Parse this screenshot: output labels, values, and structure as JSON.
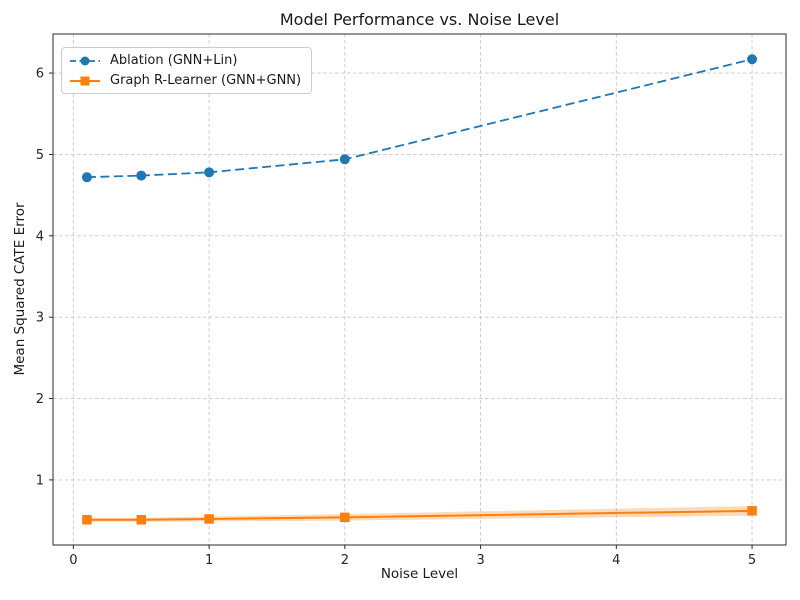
{
  "chart_data": {
    "type": "line",
    "title": "Model Performance vs. Noise Level",
    "xlabel": "Noise Level",
    "ylabel": "Mean Squared CATE Error",
    "x": [
      0.1,
      0.5,
      1.0,
      2.0,
      5.0
    ],
    "series": [
      {
        "name": "Ablation (GNN+Lin)",
        "values": [
          4.72,
          4.74,
          4.78,
          4.94,
          6.17
        ],
        "color": "#1f77b4",
        "linestyle": "dashed",
        "marker": "circle"
      },
      {
        "name": "Graph R-Learner (GNN+GNN)",
        "values": [
          0.51,
          0.51,
          0.52,
          0.54,
          0.62
        ],
        "color": "#ff7f0e",
        "linestyle": "solid",
        "marker": "square",
        "band_halfwidth": [
          0.025,
          0.025,
          0.03,
          0.04,
          0.06
        ]
      }
    ],
    "x_ticks": [
      0,
      1,
      2,
      3,
      4,
      5
    ],
    "y_ticks": [
      1,
      2,
      3,
      4,
      5,
      6
    ],
    "x_tick_labels": [
      "0",
      "1",
      "2",
      "3",
      "4",
      "5"
    ],
    "y_tick_labels": [
      "1",
      "2",
      "3",
      "4",
      "5",
      "6"
    ],
    "xlim": [
      -0.15,
      5.25
    ],
    "ylim": [
      0.2,
      6.48
    ],
    "grid": true,
    "grid_color": "#c8c8c8",
    "spine_color": "#2b2b2b",
    "text_color": "#262626",
    "legend_position": "upper-left"
  }
}
